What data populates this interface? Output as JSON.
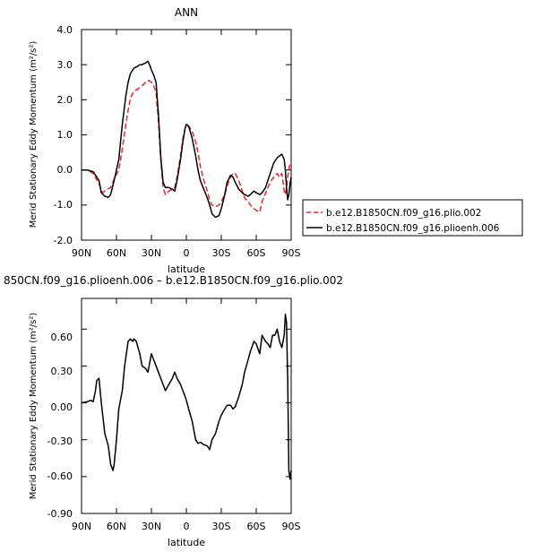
{
  "chart_data": [
    {
      "type": "line",
      "title": "ANN",
      "xlabel": "latitude",
      "ylabel": "Merid Stationary Eddy Momentum (m²/s²)",
      "x_ticks": [
        "90N",
        "60N",
        "30N",
        "0",
        "30S",
        "60S",
        "90S"
      ],
      "y_ticks": [
        "4.0",
        "3.0",
        "2.0",
        "1.0",
        "0.0",
        "-1.0",
        "-2.0"
      ],
      "xlim": [
        90,
        -90
      ],
      "ylim": [
        -2.0,
        4.0
      ],
      "legend": "outside-right",
      "series": [
        {
          "name": "b.e12.B1850CN.f09_g16.plio.002",
          "color": "#e8262a",
          "dash": "dashed",
          "x": [
            90,
            85,
            80,
            75,
            72,
            68,
            65,
            62,
            58,
            55,
            52,
            50,
            48,
            45,
            42,
            40,
            38,
            35,
            32,
            30,
            28,
            26,
            24,
            22,
            20,
            18,
            15,
            12,
            10,
            8,
            5,
            3,
            1,
            0,
            -2,
            -5,
            -8,
            -10,
            -12,
            -15,
            -18,
            -20,
            -22,
            -25,
            -28,
            -30,
            -33,
            -35,
            -38,
            -40,
            -42,
            -45,
            -48,
            -50,
            -53,
            -55,
            -58,
            -60,
            -63,
            -65,
            -70,
            -73,
            -75,
            -78,
            -80,
            -82,
            -84,
            -85,
            -86,
            -87,
            -88,
            -89,
            -90
          ],
          "y": [
            0.0,
            0.0,
            -0.1,
            -0.4,
            -0.65,
            -0.55,
            -0.5,
            -0.25,
            0.0,
            0.6,
            1.3,
            1.7,
            2.05,
            2.25,
            2.3,
            2.35,
            2.4,
            2.5,
            2.55,
            2.5,
            2.4,
            2.2,
            1.4,
            0.3,
            -0.5,
            -0.7,
            -0.6,
            -0.55,
            -0.5,
            -0.2,
            0.4,
            0.9,
            1.2,
            1.25,
            1.25,
            1.1,
            0.8,
            0.5,
            0.1,
            -0.3,
            -0.6,
            -0.85,
            -1.0,
            -1.05,
            -1.0,
            -0.9,
            -0.7,
            -0.45,
            -0.2,
            -0.1,
            -0.1,
            -0.3,
            -0.6,
            -0.8,
            -0.9,
            -1.0,
            -1.1,
            -1.15,
            -1.2,
            -0.9,
            -0.5,
            -0.3,
            -0.2,
            -0.1,
            -0.2,
            -0.1,
            -0.6,
            -0.7,
            -0.5,
            -0.2,
            0.0,
            0.2,
            0.15
          ]
        },
        {
          "name": "b.e12.B1850CN.f09_g16.plioenh.006",
          "color": "#000000",
          "dash": "solid",
          "x": [
            90,
            85,
            80,
            75,
            73,
            70,
            67,
            65,
            62,
            58,
            55,
            52,
            50,
            48,
            45,
            42,
            40,
            38,
            35,
            33,
            31,
            30,
            28,
            26,
            24,
            22,
            20,
            18,
            15,
            12,
            10,
            8,
            5,
            3,
            1,
            0,
            -2,
            -5,
            -8,
            -10,
            -12,
            -15,
            -18,
            -20,
            -22,
            -25,
            -28,
            -30,
            -33,
            -35,
            -38,
            -40,
            -42,
            -45,
            -48,
            -50,
            -53,
            -55,
            -58,
            -60,
            -63,
            -65,
            -68,
            -70,
            -73,
            -75,
            -78,
            -80,
            -82,
            -84,
            -85,
            -86,
            -87,
            -88,
            -89,
            -90
          ],
          "y": [
            0.0,
            0.0,
            -0.05,
            -0.3,
            -0.65,
            -0.75,
            -0.78,
            -0.7,
            -0.3,
            0.3,
            1.3,
            2.1,
            2.5,
            2.75,
            2.9,
            2.95,
            3.0,
            3.0,
            3.05,
            3.1,
            2.95,
            2.85,
            2.7,
            2.5,
            1.6,
            0.4,
            -0.35,
            -0.5,
            -0.5,
            -0.55,
            -0.6,
            -0.3,
            0.3,
            0.8,
            1.2,
            1.3,
            1.25,
            0.9,
            0.4,
            0.0,
            -0.3,
            -0.55,
            -0.8,
            -1.0,
            -1.25,
            -1.35,
            -1.3,
            -1.1,
            -0.7,
            -0.35,
            -0.15,
            -0.2,
            -0.35,
            -0.55,
            -0.65,
            -0.7,
            -0.75,
            -0.7,
            -0.6,
            -0.65,
            -0.7,
            -0.65,
            -0.5,
            -0.3,
            0.0,
            0.2,
            0.35,
            0.4,
            0.45,
            0.3,
            0.0,
            -0.5,
            -0.85,
            -0.7,
            -0.4,
            -0.2
          ]
        }
      ]
    },
    {
      "type": "line",
      "title": "850CN.f09_g16.plioenh.006 – b.e12.B1850CN.f09_g16.plio.002",
      "xlabel": "latitude",
      "ylabel": "Merid Stationary Eddy Momentum (m²/s²)",
      "x_ticks": [
        "90N",
        "60N",
        "30N",
        "0",
        "30S",
        "60S",
        "90S"
      ],
      "y_ticks": [
        "0.60",
        "0.30",
        "0.00",
        "-0.30",
        "-0.60",
        "-0.90"
      ],
      "xlim": [
        90,
        -90
      ],
      "ylim": [
        -0.9,
        0.85
      ],
      "series": [
        {
          "color": "#000000",
          "dash": "solid",
          "x": [
            90,
            85,
            82,
            80,
            78,
            77,
            75,
            73,
            70,
            67,
            65,
            63,
            62,
            60,
            58,
            55,
            53,
            50,
            48,
            46,
            45,
            43,
            40,
            38,
            35,
            33,
            31,
            30,
            28,
            26,
            24,
            22,
            20,
            18,
            15,
            12,
            10,
            8,
            5,
            3,
            1,
            0,
            -2,
            -5,
            -8,
            -10,
            -12,
            -15,
            -18,
            -20,
            -22,
            -25,
            -28,
            -30,
            -33,
            -35,
            -38,
            -40,
            -42,
            -45,
            -48,
            -50,
            -53,
            -55,
            -58,
            -60,
            -63,
            -65,
            -68,
            -70,
            -72,
            -74,
            -76,
            -78,
            -80,
            -82,
            -84,
            -85,
            -86,
            -87,
            -88,
            -89,
            -90
          ],
          "y": [
            0.0,
            0.01,
            0.02,
            0.01,
            0.1,
            0.18,
            0.2,
            0.0,
            -0.25,
            -0.35,
            -0.5,
            -0.55,
            -0.5,
            -0.3,
            -0.05,
            0.1,
            0.3,
            0.5,
            0.52,
            0.5,
            0.52,
            0.5,
            0.4,
            0.3,
            0.28,
            0.25,
            0.35,
            0.4,
            0.35,
            0.3,
            0.25,
            0.2,
            0.15,
            0.1,
            0.15,
            0.2,
            0.25,
            0.2,
            0.15,
            0.1,
            0.05,
            0.02,
            -0.05,
            -0.15,
            -0.3,
            -0.33,
            -0.32,
            -0.34,
            -0.35,
            -0.38,
            -0.3,
            -0.25,
            -0.15,
            -0.1,
            -0.05,
            -0.02,
            -0.02,
            -0.05,
            -0.03,
            0.05,
            0.15,
            0.25,
            0.35,
            0.42,
            0.5,
            0.48,
            0.4,
            0.55,
            0.5,
            0.48,
            0.45,
            0.55,
            0.55,
            0.6,
            0.5,
            0.45,
            0.55,
            0.72,
            0.65,
            0.2,
            -0.55,
            -0.62,
            -0.55
          ]
        }
      ]
    }
  ]
}
